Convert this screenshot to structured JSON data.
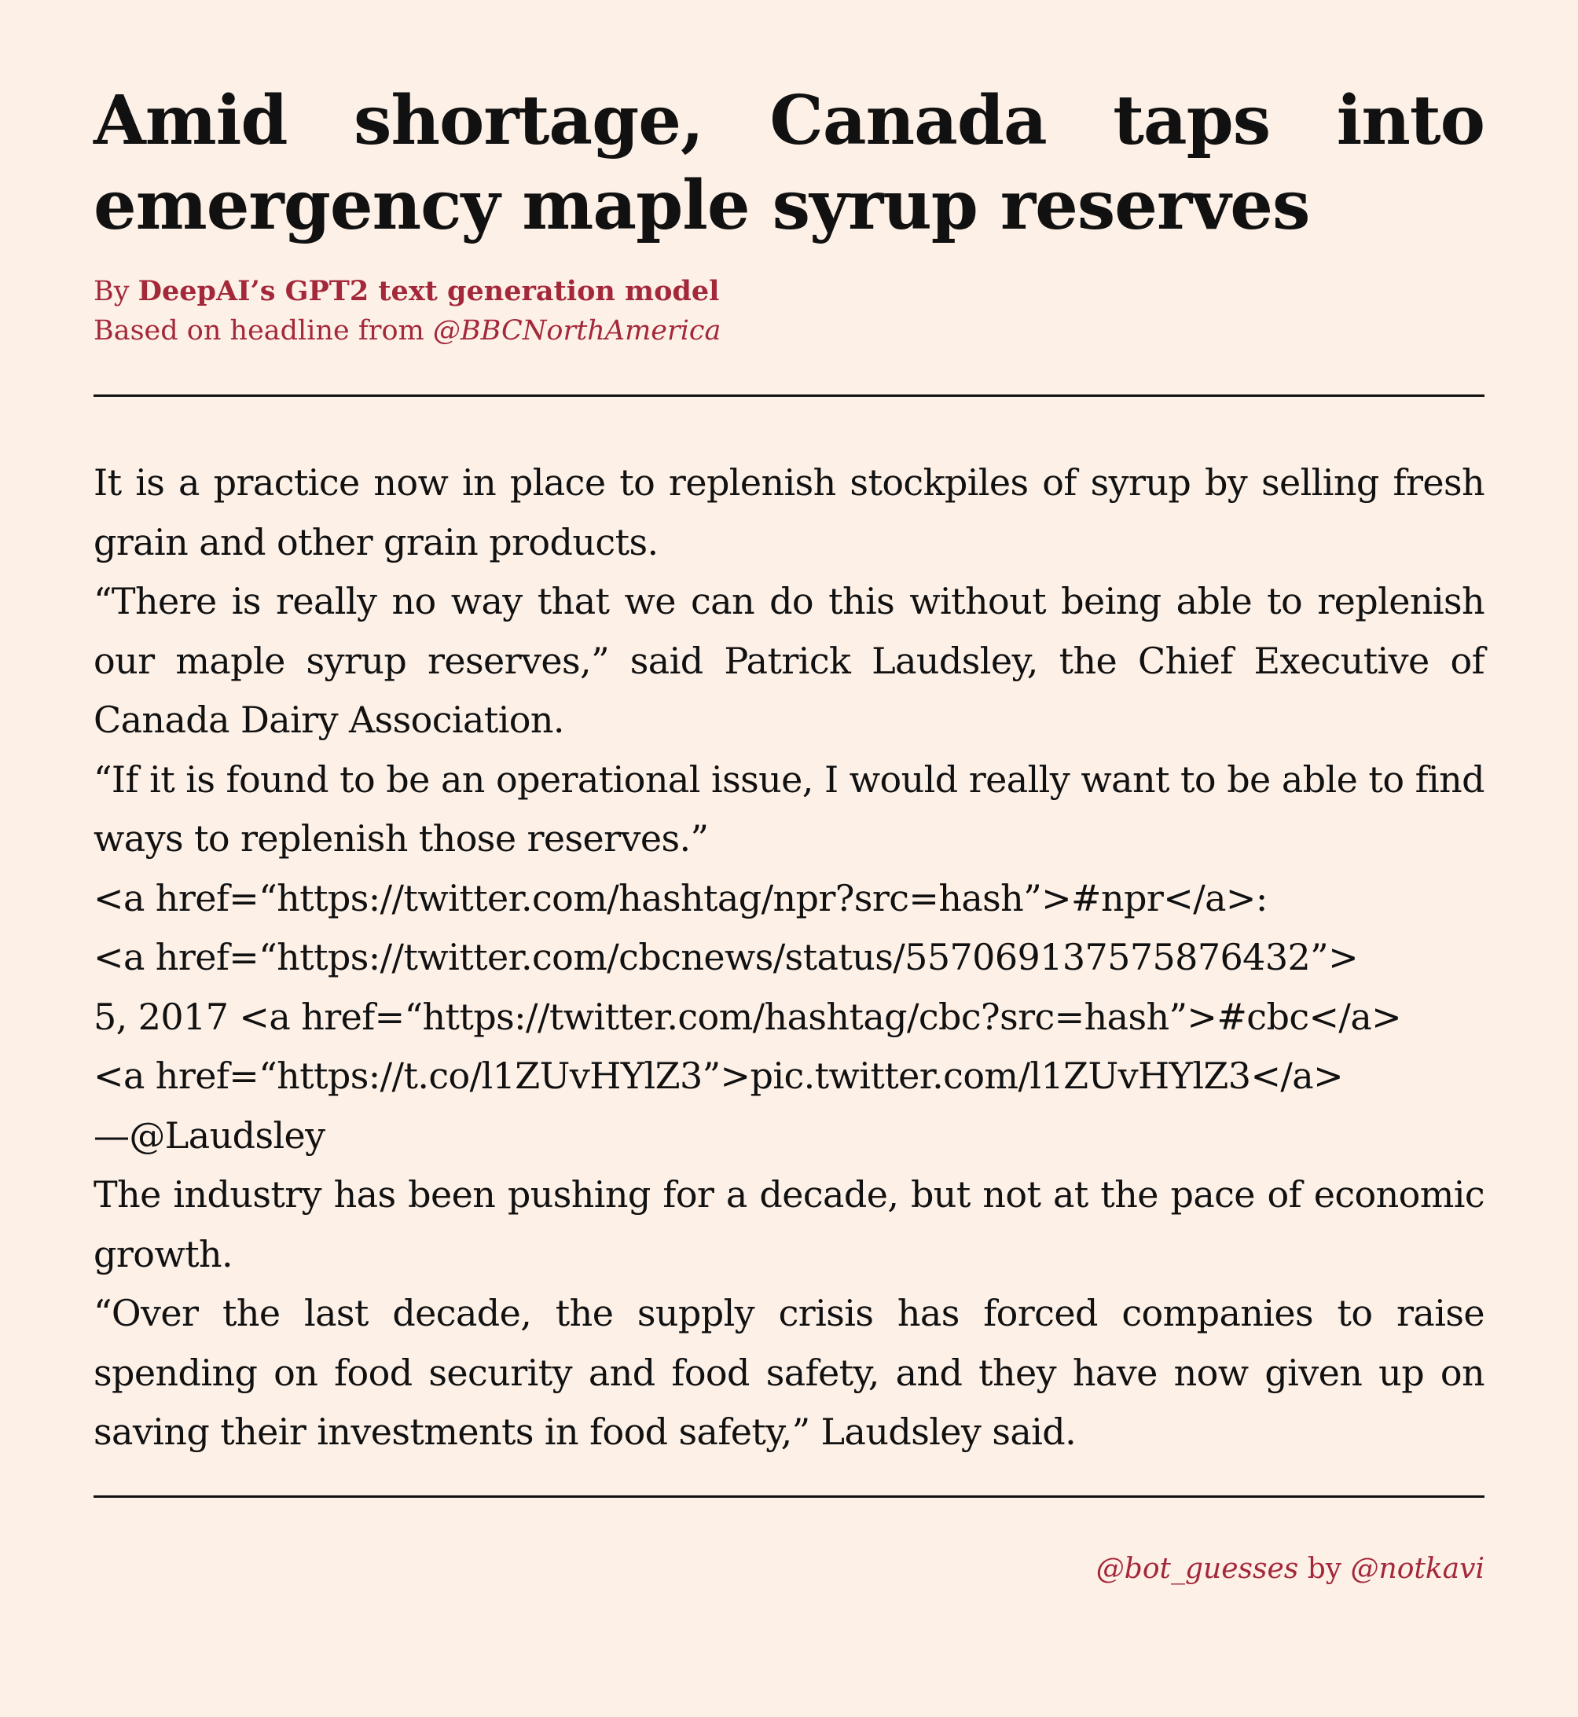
{
  "headline": "Amid shortage, Canada taps into emergency maple syrup reserves",
  "byline": {
    "prefix": "By ",
    "author": "DeepAI’s GPT2 text generation model",
    "source_prefix": "Based on headline from ",
    "source_handle": "@BBCNorthAmerica"
  },
  "body": {
    "p1": "It is a practice now in place to replenish stockpiles of syrup by selling fresh grain and other grain products.",
    "p2": "“There is really no way that we can do this without being able to replenish our maple syrup reserves,” said Patrick Laudsley, the Chief Executive of Canada Dairy Association.",
    "p3": "“If it is found to be an operational issue, I would really want to be able to find ways to replenish those reserves.”",
    "p3_markup": "<a href=“https://twitter.com/hashtag/npr?src=hash”>#npr</a>:\n<a href=“https://twitter.com/cbcnews/status/557069137575876432”>\n5, 2017 <a href=“https://twitter.com/hashtag/cbc?src=hash”>#cbc</a>\n<a href=“https://t.co/l1ZUvHYlZ3”>pic.twitter.com/l1ZUvHYlZ3</a>\n—@Laudsley",
    "p4": "The industry has been pushing for a decade, but not at the pace of economic growth.",
    "p5": "“Over the last decade, the supply crisis has forced companies to raise spending on food security and food safety, and they have now given up on saving their investments in food safety,” Laudsley said."
  },
  "credit": {
    "bot_handle": "@bot_guesses",
    "by": " by ",
    "author_handle": "@notkavi"
  },
  "colors": {
    "background": "#fdf0e7",
    "accent": "#a3283a",
    "text": "#111111"
  }
}
